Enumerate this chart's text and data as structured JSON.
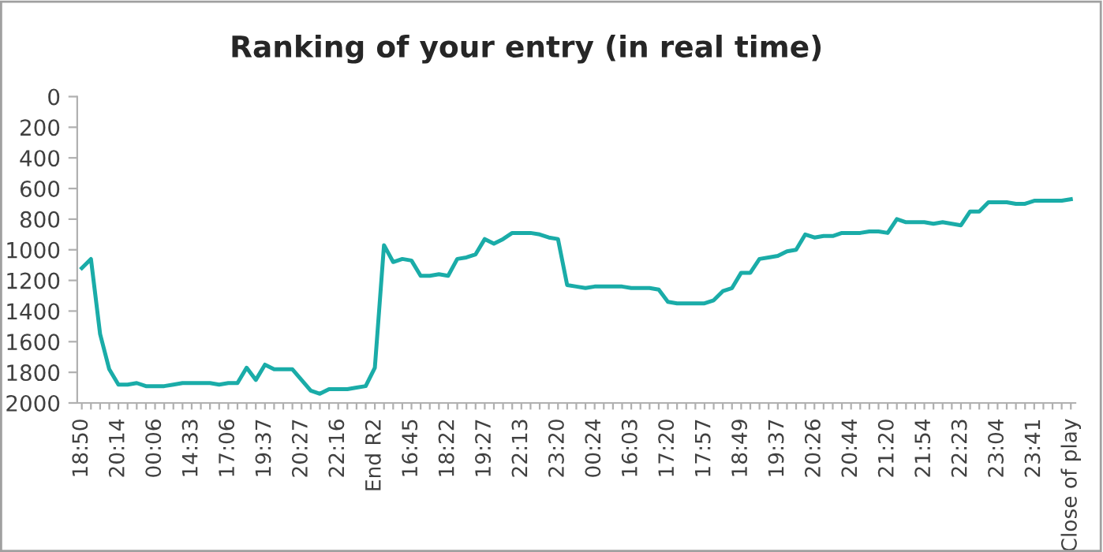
{
  "chart_data": {
    "type": "line",
    "title": "Ranking of your entry (in real time)",
    "categories": [
      "18:50",
      null,
      null,
      null,
      "20:14",
      null,
      null,
      null,
      "00:06",
      null,
      null,
      null,
      "14:33",
      null,
      null,
      null,
      "17:06",
      null,
      null,
      null,
      "19:37",
      null,
      null,
      null,
      "20:27",
      null,
      null,
      null,
      "22:16",
      null,
      null,
      null,
      "End R2",
      null,
      null,
      null,
      "16:45",
      null,
      null,
      null,
      "18:22",
      null,
      null,
      null,
      "19:27",
      null,
      null,
      null,
      "22:13",
      null,
      null,
      null,
      "23:20",
      null,
      null,
      null,
      "00:24",
      null,
      null,
      null,
      "16:03",
      null,
      null,
      null,
      "17:20",
      null,
      null,
      null,
      "17:57",
      null,
      null,
      null,
      "18:49",
      null,
      null,
      null,
      "19:37",
      null,
      null,
      null,
      "20:26",
      null,
      null,
      null,
      "20:44",
      null,
      null,
      null,
      "21:20",
      null,
      null,
      null,
      "21:54",
      null,
      null,
      null,
      "22:23",
      null,
      null,
      null,
      "23:04",
      null,
      null,
      null,
      "23:41",
      null,
      null,
      null,
      "Close of play"
    ],
    "series": [
      {
        "color": "#1aaca8",
        "values": [
          1120,
          1060,
          1550,
          1780,
          1880,
          1880,
          1870,
          1890,
          1890,
          1890,
          1880,
          1870,
          1870,
          1870,
          1870,
          1880,
          1870,
          1870,
          1770,
          1850,
          1750,
          1780,
          1780,
          1780,
          1850,
          1920,
          1940,
          1910,
          1910,
          1910,
          1900,
          1890,
          1770,
          970,
          1080,
          1060,
          1070,
          1170,
          1170,
          1160,
          1170,
          1060,
          1050,
          1030,
          930,
          960,
          930,
          890,
          890,
          890,
          900,
          920,
          930,
          1230,
          1240,
          1250,
          1240,
          1240,
          1240,
          1240,
          1250,
          1250,
          1250,
          1260,
          1340,
          1350,
          1350,
          1350,
          1350,
          1330,
          1270,
          1250,
          1150,
          1150,
          1060,
          1050,
          1040,
          1010,
          1000,
          900,
          920,
          910,
          910,
          890,
          890,
          890,
          880,
          880,
          890,
          800,
          820,
          820,
          820,
          830,
          820,
          830,
          840,
          750,
          750,
          690,
          690,
          690,
          700,
          700,
          680,
          680,
          680,
          680,
          670
        ]
      }
    ],
    "ylim": [
      2000,
      0
    ],
    "yticks": [
      0,
      200,
      400,
      600,
      800,
      1000,
      1200,
      1400,
      1600,
      1800,
      2000
    ],
    "grid": false,
    "marker": "none",
    "line_style": "solid"
  }
}
